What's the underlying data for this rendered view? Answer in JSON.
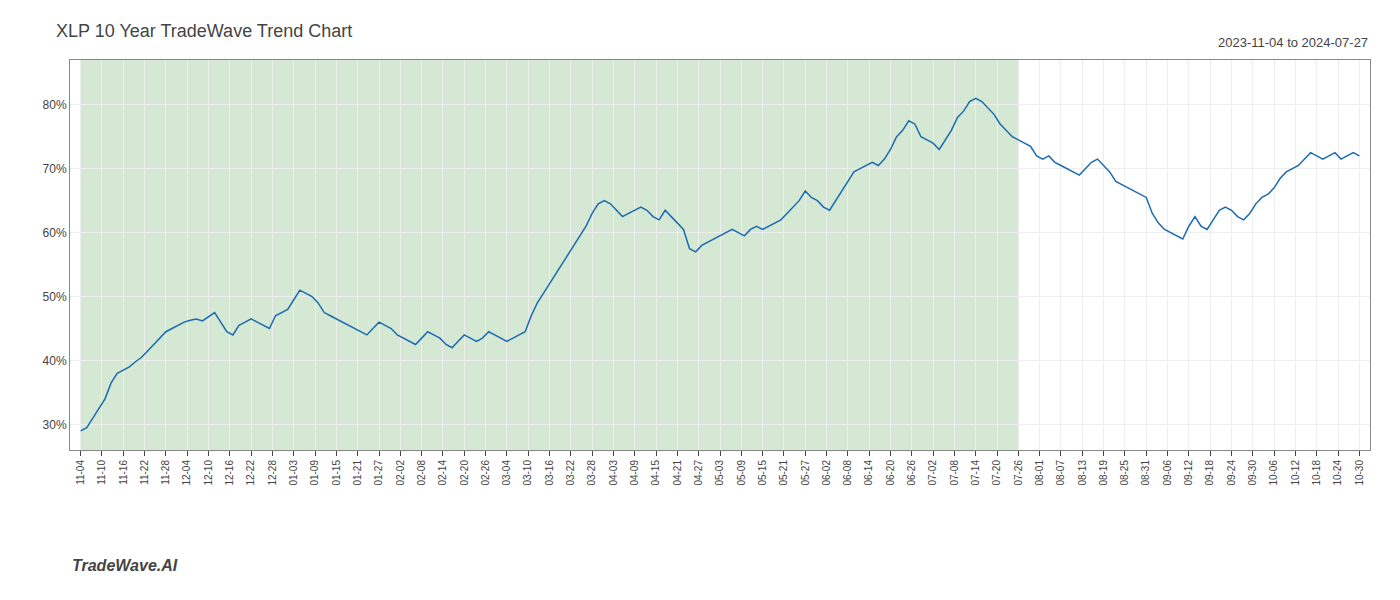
{
  "chart_data": {
    "type": "line",
    "title": "XLP 10 Year TradeWave Trend Chart",
    "subtitle": "2023-11-04 to 2024-07-27",
    "annotations": [
      {
        "text": "TradeWave.AI"
      }
    ],
    "color": "#1c6bb0",
    "grid": true,
    "shaded_span": {
      "from": 0,
      "to": 154,
      "color": "#d4e8d4"
    },
    "xlim": [
      -1.75,
      211.75
    ],
    "xticks": [
      {
        "value": 0,
        "label": "11-04"
      },
      {
        "value": 3.5,
        "label": "11-10"
      },
      {
        "value": 7,
        "label": "11-16"
      },
      {
        "value": 10.5,
        "label": "11-22"
      },
      {
        "value": 14,
        "label": "11-28"
      },
      {
        "value": 17.5,
        "label": "12-04"
      },
      {
        "value": 21,
        "label": "12-10"
      },
      {
        "value": 24.5,
        "label": "12-16"
      },
      {
        "value": 28,
        "label": "12-22"
      },
      {
        "value": 31.5,
        "label": "12-28"
      },
      {
        "value": 35,
        "label": "01-03"
      },
      {
        "value": 38.5,
        "label": "01-09"
      },
      {
        "value": 42,
        "label": "01-15"
      },
      {
        "value": 45.5,
        "label": "01-21"
      },
      {
        "value": 49,
        "label": "01-27"
      },
      {
        "value": 52.5,
        "label": "02-02"
      },
      {
        "value": 56,
        "label": "02-08"
      },
      {
        "value": 59.5,
        "label": "02-14"
      },
      {
        "value": 63,
        "label": "02-20"
      },
      {
        "value": 66.5,
        "label": "02-26"
      },
      {
        "value": 70,
        "label": "03-04"
      },
      {
        "value": 73.5,
        "label": "03-10"
      },
      {
        "value": 77,
        "label": "03-16"
      },
      {
        "value": 80.5,
        "label": "03-22"
      },
      {
        "value": 84,
        "label": "03-28"
      },
      {
        "value": 87.5,
        "label": "04-03"
      },
      {
        "value": 91,
        "label": "04-09"
      },
      {
        "value": 94.5,
        "label": "04-15"
      },
      {
        "value": 98,
        "label": "04-21"
      },
      {
        "value": 101.5,
        "label": "04-27"
      },
      {
        "value": 105,
        "label": "05-03"
      },
      {
        "value": 108.5,
        "label": "05-09"
      },
      {
        "value": 112,
        "label": "05-15"
      },
      {
        "value": 115.5,
        "label": "05-21"
      },
      {
        "value": 119,
        "label": "05-27"
      },
      {
        "value": 122.5,
        "label": "06-02"
      },
      {
        "value": 126,
        "label": "06-08"
      },
      {
        "value": 129.5,
        "label": "06-14"
      },
      {
        "value": 133,
        "label": "06-20"
      },
      {
        "value": 136.5,
        "label": "06-26"
      },
      {
        "value": 140,
        "label": "07-02"
      },
      {
        "value": 143.5,
        "label": "07-08"
      },
      {
        "value": 147,
        "label": "07-14"
      },
      {
        "value": 150.5,
        "label": "07-20"
      },
      {
        "value": 154,
        "label": "07-26"
      },
      {
        "value": 157.5,
        "label": "08-01"
      },
      {
        "value": 161,
        "label": "08-07"
      },
      {
        "value": 164.5,
        "label": "08-13"
      },
      {
        "value": 168,
        "label": "08-19"
      },
      {
        "value": 171.5,
        "label": "08-25"
      },
      {
        "value": 175,
        "label": "08-31"
      },
      {
        "value": 178.5,
        "label": "09-06"
      },
      {
        "value": 182,
        "label": "09-12"
      },
      {
        "value": 185.5,
        "label": "09-18"
      },
      {
        "value": 189,
        "label": "09-24"
      },
      {
        "value": 192.5,
        "label": "09-30"
      },
      {
        "value": 196,
        "label": "10-06"
      },
      {
        "value": 199.5,
        "label": "10-12"
      },
      {
        "value": 203,
        "label": "10-18"
      },
      {
        "value": 206.5,
        "label": "10-24"
      },
      {
        "value": 210,
        "label": "10-30"
      }
    ],
    "ylim": [
      26,
      87
    ],
    "yticks": [
      {
        "value": 30,
        "label": "30%"
      },
      {
        "value": 40,
        "label": "40%"
      },
      {
        "value": 50,
        "label": "50%"
      },
      {
        "value": 60,
        "label": "60%"
      },
      {
        "value": 70,
        "label": "70%"
      },
      {
        "value": 80,
        "label": "80%"
      }
    ],
    "values": [
      29.0,
      29.5,
      31.0,
      32.5,
      34.0,
      36.5,
      38.0,
      38.5,
      39.0,
      39.8,
      40.5,
      41.5,
      42.5,
      43.5,
      44.5,
      45.0,
      45.5,
      46.0,
      46.3,
      46.5,
      46.2,
      46.8,
      47.5,
      46.0,
      44.5,
      44.0,
      45.5,
      46.0,
      46.5,
      46.0,
      45.5,
      45.0,
      47.0,
      47.5,
      48.0,
      49.5,
      51.0,
      50.5,
      50.0,
      49.0,
      47.5,
      47.0,
      46.5,
      46.0,
      45.5,
      45.0,
      44.5,
      44.0,
      45.0,
      46.0,
      45.5,
      45.0,
      44.0,
      43.5,
      43.0,
      42.5,
      43.5,
      44.5,
      44.0,
      43.5,
      42.5,
      42.0,
      43.0,
      44.0,
      43.5,
      43.0,
      43.5,
      44.5,
      44.0,
      43.5,
      43.0,
      43.5,
      44.0,
      44.5,
      47.0,
      49.0,
      50.5,
      52.0,
      53.5,
      55.0,
      56.5,
      58.0,
      59.5,
      61.0,
      63.0,
      64.5,
      65.0,
      64.5,
      63.5,
      62.5,
      63.0,
      63.5,
      64.0,
      63.5,
      62.5,
      62.0,
      63.5,
      62.5,
      61.5,
      60.5,
      57.5,
      57.0,
      58.0,
      58.5,
      59.0,
      59.5,
      60.0,
      60.5,
      60.0,
      59.5,
      60.5,
      61.0,
      60.5,
      61.0,
      61.5,
      62.0,
      63.0,
      64.0,
      65.0,
      66.5,
      65.5,
      65.0,
      64.0,
      63.5,
      65.0,
      66.5,
      68.0,
      69.5,
      70.0,
      70.5,
      71.0,
      70.5,
      71.5,
      73.0,
      75.0,
      76.0,
      77.5,
      77.0,
      75.0,
      74.5,
      74.0,
      73.0,
      74.5,
      76.0,
      78.0,
      79.0,
      80.5,
      81.0,
      80.5,
      79.5,
      78.5,
      77.0,
      76.0,
      75.0,
      74.5,
      74.0,
      73.5,
      72.0,
      71.5,
      72.0,
      71.0,
      70.5,
      70.0,
      69.5,
      69.0,
      70.0,
      71.0,
      71.5,
      70.5,
      69.5,
      68.0,
      67.5,
      67.0,
      66.5,
      66.0,
      65.5,
      63.0,
      61.5,
      60.5,
      60.0,
      59.5,
      59.0,
      61.0,
      62.5,
      61.0,
      60.5,
      62.0,
      63.5,
      64.0,
      63.5,
      62.5,
      62.0,
      63.0,
      64.5,
      65.5,
      66.0,
      67.0,
      68.5,
      69.5,
      70.0,
      70.5,
      71.5,
      72.5,
      72.0,
      71.5,
      72.0,
      72.5,
      71.5,
      72.0,
      72.5,
      72.0
    ]
  }
}
